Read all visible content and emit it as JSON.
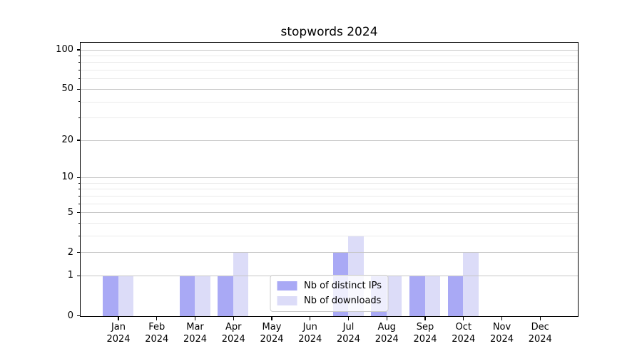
{
  "chart_data": {
    "type": "bar",
    "title": "stopwords 2024",
    "categories": [
      "Jan",
      "Feb",
      "Mar",
      "Apr",
      "May",
      "Jun",
      "Jul",
      "Aug",
      "Sep",
      "Oct",
      "Nov",
      "Dec"
    ],
    "category_year": "2024",
    "series": [
      {
        "name": "Nb of distinct IPs",
        "color": "#a9a9f5",
        "values": [
          1,
          0,
          1,
          1,
          0,
          0,
          2,
          1,
          1,
          1,
          0,
          0
        ]
      },
      {
        "name": "Nb of downloads",
        "color": "#dcdcf8",
        "values": [
          1,
          0,
          1,
          2,
          0,
          0,
          3,
          1,
          1,
          2,
          0,
          0
        ]
      }
    ],
    "xlabel": "",
    "ylabel": "",
    "yscale": "log1p",
    "ylim": [
      0,
      110
    ],
    "y_major_ticks": [
      0,
      1,
      2,
      5,
      10,
      20,
      50,
      100
    ],
    "y_minor_ticks": [
      3,
      4,
      6,
      7,
      8,
      9,
      30,
      40,
      60,
      70,
      80,
      90
    ],
    "grid": "on",
    "grid_above_bars": true,
    "legend_position": "lower center"
  },
  "colors": {
    "background": "#ffffff",
    "spine": "#000000",
    "grid_major": "#c6c6c6",
    "grid_minor": "#eaeaea",
    "text": "#000000",
    "legend_border": "#cbcbcb"
  }
}
